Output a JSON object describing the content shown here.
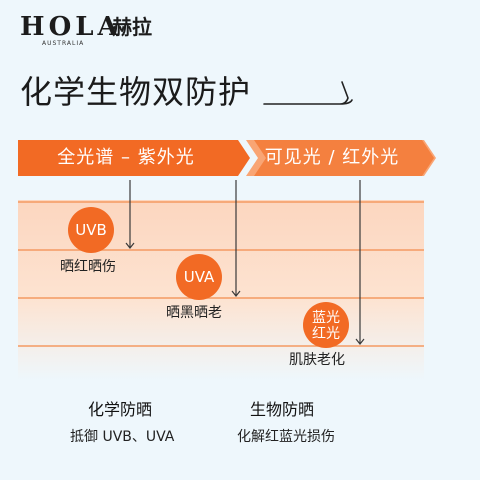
{
  "brand": {
    "latin": "HOLA",
    "chinese": "赫拉",
    "sub": "AUSTRALIA"
  },
  "headline": "化学生物双防护",
  "banner": {
    "left_label": "全光谱 – 紫外光",
    "right_label": "可见光 / 红外光"
  },
  "rays": [
    {
      "badge": [
        "UVB"
      ],
      "effect": "晒红晒伤"
    },
    {
      "badge": [
        "UVA"
      ],
      "effect": "晒黑晒老"
    },
    {
      "badge": [
        "蓝光",
        "红光"
      ],
      "effect": "肌肤老化"
    }
  ],
  "columns": [
    {
      "title": "化学防晒",
      "subtitle": "抵御 UVB、UVA"
    },
    {
      "title": "生物防晒",
      "subtitle": "化解红蓝光损伤"
    }
  ],
  "colors": {
    "accent": "#f26a24",
    "background": "#eef7fc",
    "band": "#fcd6bf"
  }
}
